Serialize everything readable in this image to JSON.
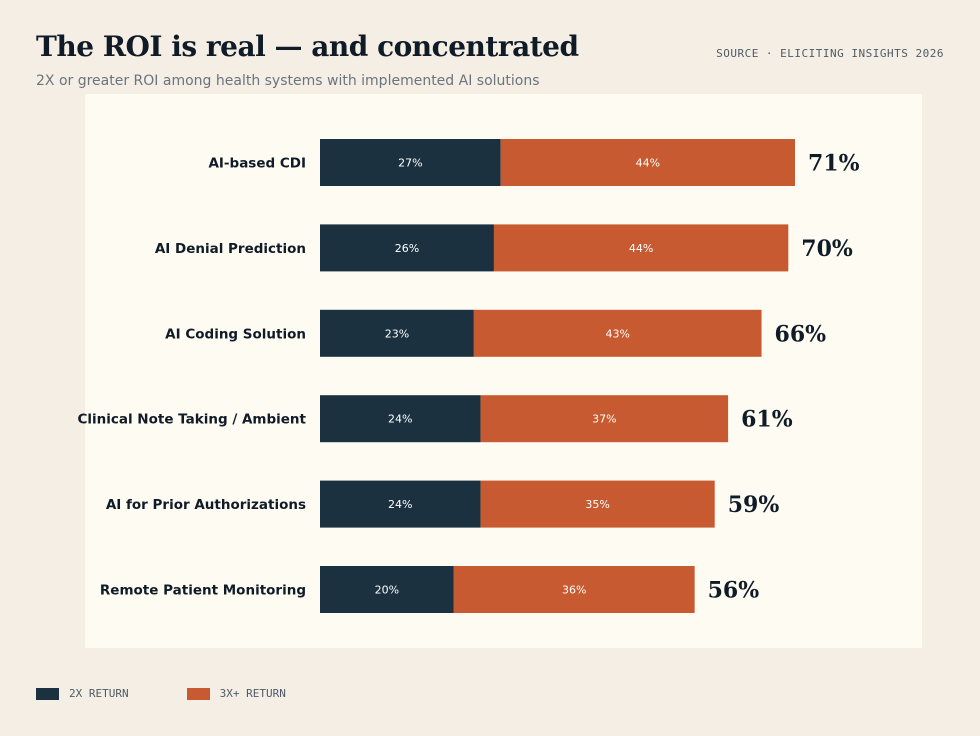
{
  "header": {
    "title": "The ROI is real — and concentrated",
    "subtitle": "2X or greater ROI among health systems with implemented AI solutions",
    "source": "SOURCE · ELICITING INSIGHTS 2026"
  },
  "colors": {
    "series_2x": "#1b3140",
    "series_3x": "#c85a31",
    "panel": "#fefbf3",
    "background": "#f5eee5"
  },
  "chart_data": {
    "type": "bar",
    "orientation": "horizontal",
    "stacked": true,
    "categories": [
      "AI-based CDI",
      "AI Denial Prediction",
      "AI Coding Solution",
      "Clinical Note Taking / Ambient",
      "AI for Prior Authorizations",
      "Remote Patient Monitoring"
    ],
    "series": [
      {
        "name": "2X RETURN",
        "values": [
          27,
          26,
          23,
          24,
          24,
          20
        ],
        "labels": [
          "27%",
          "26%",
          "23%",
          "24%",
          "24%",
          "20%"
        ]
      },
      {
        "name": "3X+ RETURN",
        "values": [
          44,
          44,
          43,
          37,
          35,
          36
        ],
        "labels": [
          "44%",
          "44%",
          "43%",
          "37%",
          "35%",
          "36%"
        ]
      }
    ],
    "totals": [
      71,
      70,
      66,
      61,
      59,
      56
    ],
    "total_labels": [
      "71%",
      "70%",
      "66%",
      "61%",
      "59%",
      "56%"
    ],
    "legend_position": "bottom-left",
    "grid": false
  }
}
